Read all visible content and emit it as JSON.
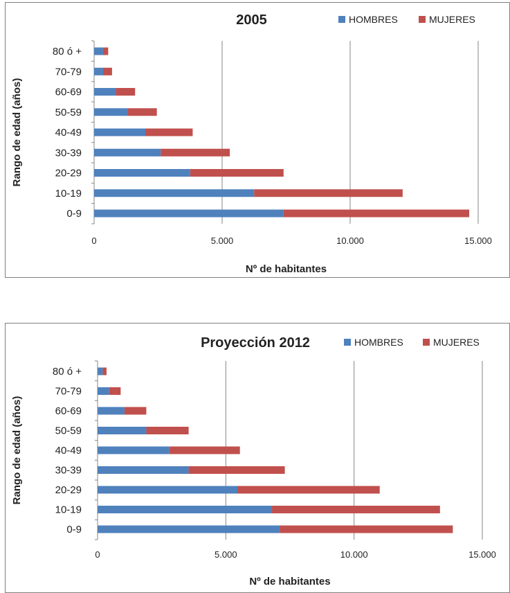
{
  "chart_data": [
    {
      "type": "bar",
      "orientation": "horizontal",
      "stacked": true,
      "title": "2005",
      "xlabel": "Nº de habitantes",
      "ylabel": "Rango de edad (años)",
      "categories": [
        "0-9",
        "10-19",
        "20-29",
        "30-39",
        "40-49",
        "50-59",
        "60-69",
        "70-79",
        "80 ó +"
      ],
      "series": [
        {
          "name": "HOMBRES",
          "color": "#4f81bd",
          "values": [
            7400,
            6250,
            3750,
            2600,
            2000,
            1300,
            850,
            350,
            350
          ]
        },
        {
          "name": "MUJERES",
          "color": "#c0504d",
          "values": [
            7250,
            5800,
            3650,
            2700,
            1850,
            1150,
            750,
            350,
            200
          ]
        }
      ],
      "xlim": [
        0,
        15000
      ],
      "xticks": [
        0,
        5000,
        10000,
        15000
      ],
      "xtick_labels": [
        "0",
        "5.000",
        "10.000",
        "15.000"
      ],
      "grid": "vertical",
      "legend_position": "top-right"
    },
    {
      "type": "bar",
      "orientation": "horizontal",
      "stacked": true,
      "title": "Proyección  2012",
      "xlabel": "Nº de habitantes",
      "ylabel": "Rango de edad (años)",
      "categories": [
        "0-9",
        "10-19",
        "20-29",
        "30-39",
        "40-49",
        "50-59",
        "60-69",
        "70-79",
        "80 ó +"
      ],
      "series": [
        {
          "name": "HOMBRES",
          "color": "#4f81bd",
          "values": [
            7100,
            6800,
            5450,
            3550,
            2800,
            1900,
            1050,
            450,
            200
          ]
        },
        {
          "name": "MUJERES",
          "color": "#c0504d",
          "values": [
            6750,
            6550,
            5550,
            3750,
            2750,
            1650,
            850,
            450,
            150
          ]
        }
      ],
      "xlim": [
        0,
        15000
      ],
      "xticks": [
        0,
        5000,
        10000,
        15000
      ],
      "xtick_labels": [
        "0",
        "5.000",
        "10.000",
        "15.000"
      ],
      "grid": "vertical",
      "legend_position": "top-right"
    }
  ]
}
